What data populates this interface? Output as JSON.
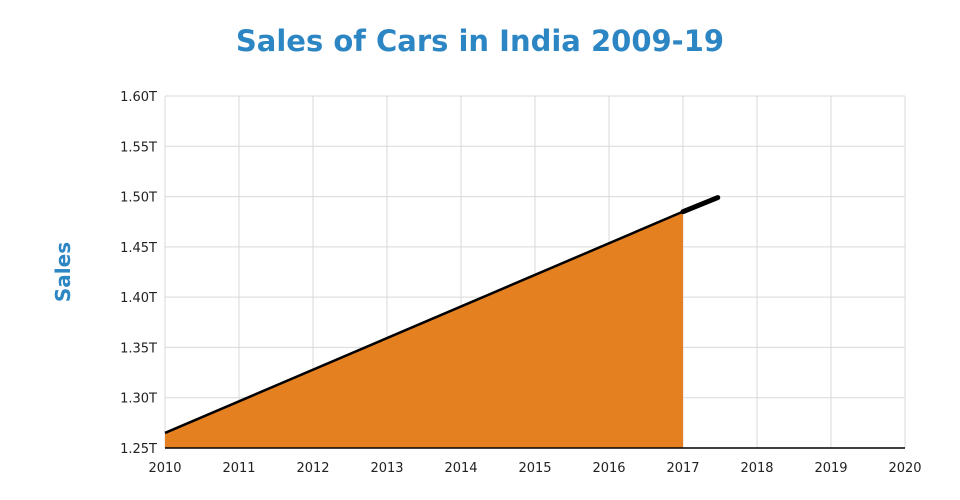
{
  "chart_data": {
    "type": "area",
    "title": "Sales of Cars in India 2009-19",
    "xlabel": "",
    "ylabel": "Sales",
    "xlim": [
      2010,
      2020
    ],
    "ylim": [
      1.25,
      1.6
    ],
    "x_ticks": [
      "2010",
      "2011",
      "2012",
      "2013",
      "2014",
      "2015",
      "2016",
      "2017",
      "2018",
      "2019",
      "2020"
    ],
    "y_ticks": [
      "1.25T",
      "1.30T",
      "1.35T",
      "1.40T",
      "1.45T",
      "1.50T",
      "1.55T",
      "1.60T"
    ],
    "grid": true,
    "fill_color": "#e58021",
    "line_color": "#000000",
    "title_color": "#2d86c4",
    "series": [
      {
        "kind": "area",
        "x": [
          2010,
          2017
        ],
        "y": [
          1.265,
          1.485
        ]
      },
      {
        "kind": "line-extension",
        "x": [
          2017,
          2017.47
        ],
        "y": [
          1.485,
          1.499
        ]
      }
    ]
  }
}
